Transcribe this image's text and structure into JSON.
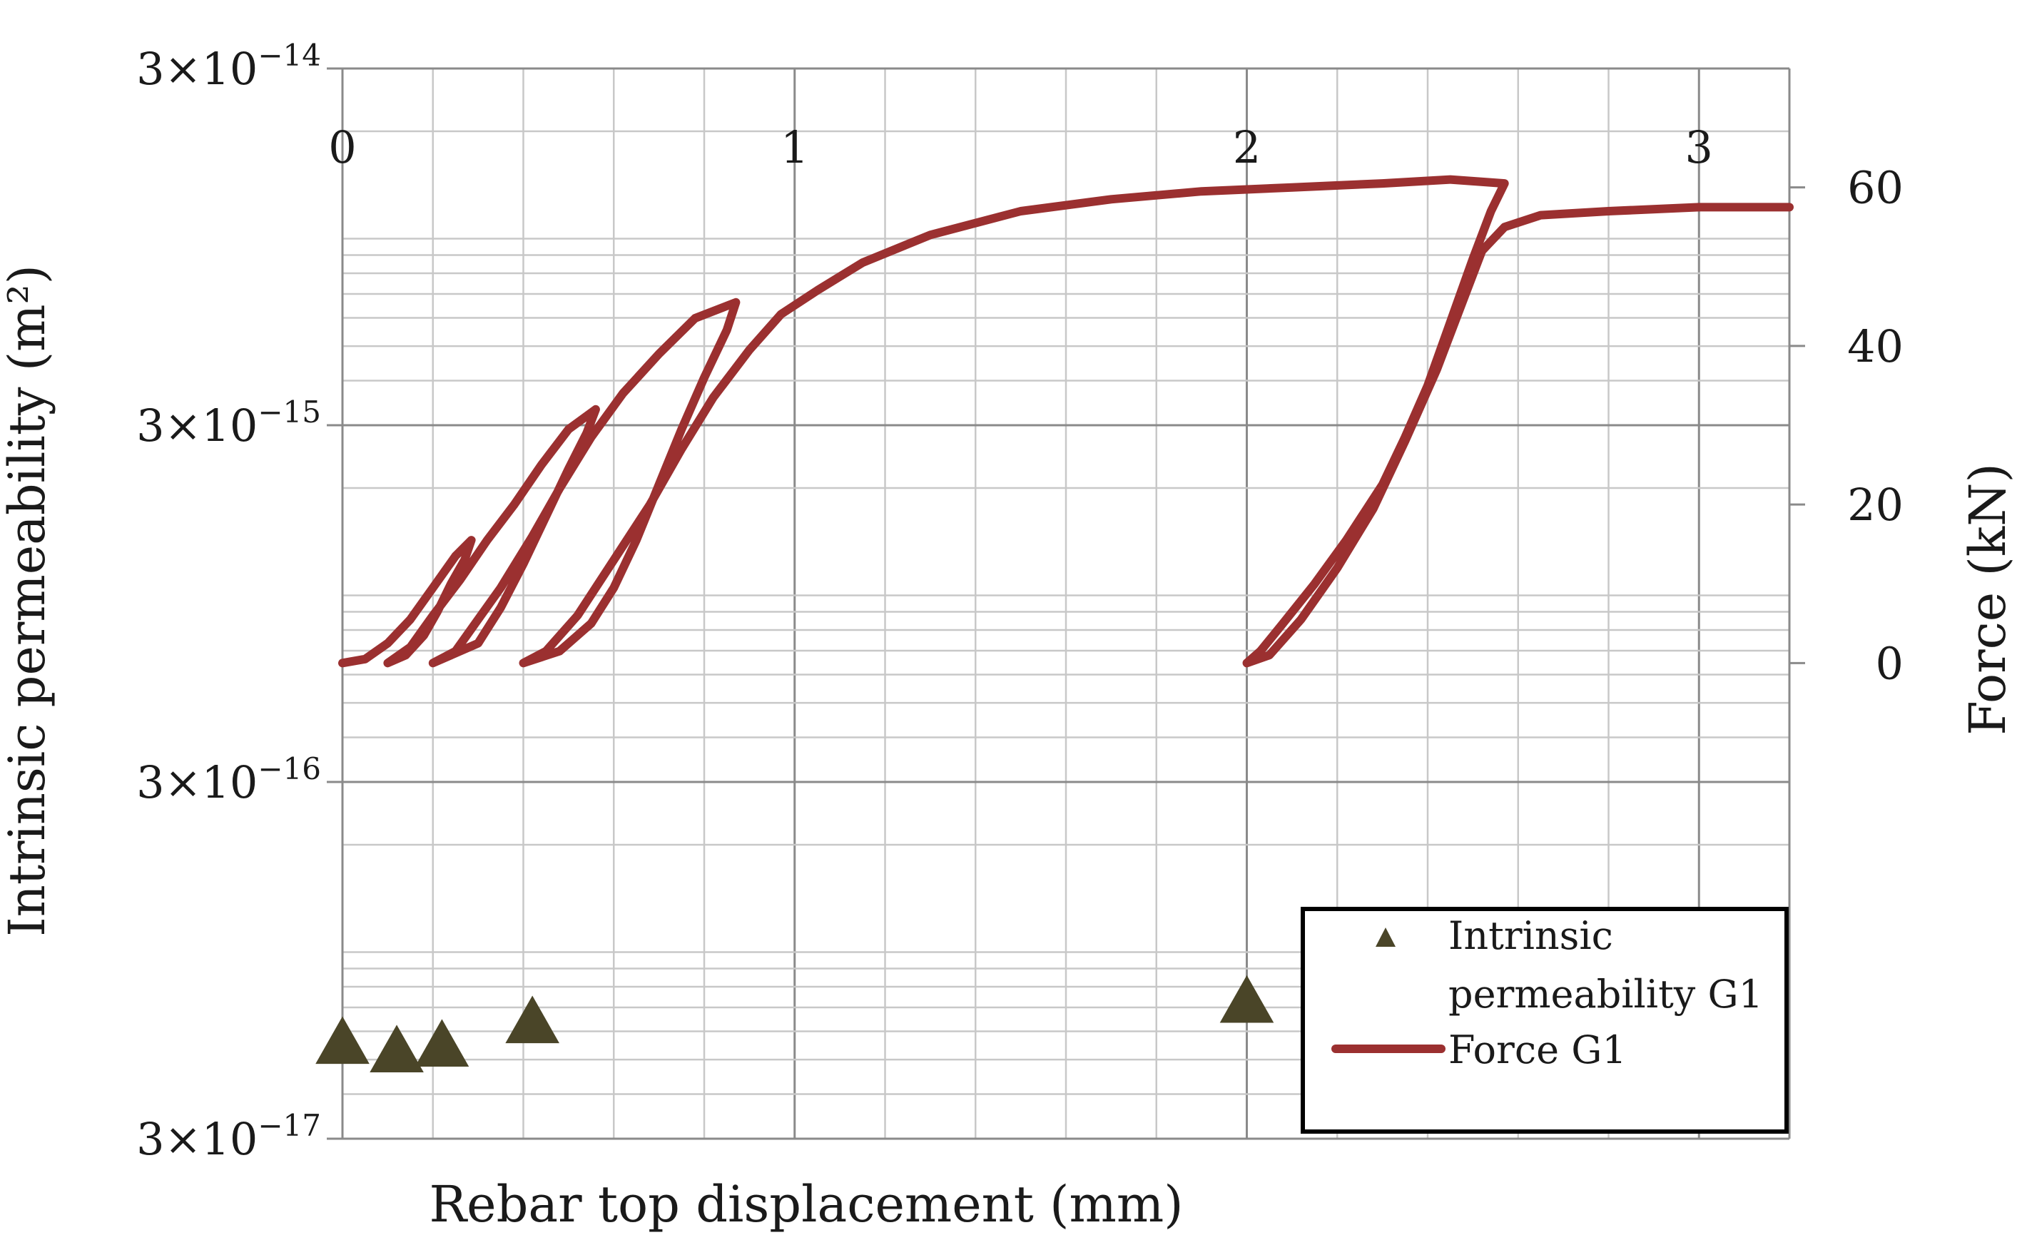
{
  "chart_data": {
    "type": "scatter",
    "title": "",
    "xlabel": "Rebar top displacement (mm)",
    "ylabel_left": "Intrinsic permeability (m²)",
    "ylabel_right": "Force (kN)",
    "x_axis": {
      "range": [
        0,
        3.2
      ],
      "position": "top",
      "ticks": [
        {
          "value": 0,
          "label": "0"
        },
        {
          "value": 1,
          "label": "1"
        },
        {
          "value": 2,
          "label": "2"
        },
        {
          "value": 3,
          "label": "3"
        }
      ],
      "minor_step": 0.2
    },
    "y_left_axis": {
      "scale": "log",
      "range": [
        3e-17,
        3e-14
      ],
      "ticks": [
        {
          "value": 3e-14,
          "mantissa": "3",
          "times": "×10",
          "exponent": "−14"
        },
        {
          "value": 3e-15,
          "mantissa": "3",
          "times": "×10",
          "exponent": "−15"
        },
        {
          "value": 3e-16,
          "mantissa": "3",
          "times": "×10",
          "exponent": "−16"
        },
        {
          "value": 3e-17,
          "mantissa": "3",
          "times": "×10",
          "exponent": "−17"
        }
      ]
    },
    "y_right_axis": {
      "scale": "linear",
      "range": [
        -60,
        75
      ],
      "ticks": [
        {
          "value": 0,
          "label": "0"
        },
        {
          "value": 20,
          "label": "20"
        },
        {
          "value": 40,
          "label": "40"
        },
        {
          "value": 60,
          "label": "60"
        }
      ]
    },
    "grid": true,
    "legend_position": "bottom-right",
    "series": [
      {
        "name": "Intrinsic permeability G1",
        "legend_lines": [
          "Intrinsic",
          "permeability G1"
        ],
        "kind": "scatter",
        "marker": "triangle",
        "axis": "left",
        "color": "#4a4528",
        "points": [
          {
            "x": 0.0,
            "y": 5.6e-17
          },
          {
            "x": 0.12,
            "y": 5.3e-17
          },
          {
            "x": 0.22,
            "y": 5.5e-17
          },
          {
            "x": 0.42,
            "y": 6.4e-17
          },
          {
            "x": 2.0,
            "y": 7.3e-17
          }
        ]
      },
      {
        "name": "Force G1",
        "kind": "line",
        "axis": "right",
        "color": "#9b3030",
        "points": [
          [
            0.0,
            0
          ],
          [
            0.05,
            0.5
          ],
          [
            0.1,
            2.5
          ],
          [
            0.15,
            5.5
          ],
          [
            0.2,
            9.5
          ],
          [
            0.25,
            13.5
          ],
          [
            0.285,
            15.5
          ],
          [
            0.27,
            13
          ],
          [
            0.24,
            10
          ],
          [
            0.21,
            6.5
          ],
          [
            0.18,
            3.5
          ],
          [
            0.14,
            1
          ],
          [
            0.1,
            0
          ],
          [
            0.15,
            2
          ],
          [
            0.2,
            6
          ],
          [
            0.26,
            10.5
          ],
          [
            0.32,
            15.5
          ],
          [
            0.38,
            20
          ],
          [
            0.44,
            25
          ],
          [
            0.5,
            29.5
          ],
          [
            0.56,
            32
          ],
          [
            0.54,
            29
          ],
          [
            0.5,
            24.5
          ],
          [
            0.45,
            18.5
          ],
          [
            0.4,
            12.5
          ],
          [
            0.35,
            7
          ],
          [
            0.3,
            2.5
          ],
          [
            0.2,
            0
          ],
          [
            0.25,
            1.5
          ],
          [
            0.3,
            5.5
          ],
          [
            0.35,
            9.5
          ],
          [
            0.42,
            16
          ],
          [
            0.48,
            22
          ],
          [
            0.55,
            28.5
          ],
          [
            0.62,
            34
          ],
          [
            0.7,
            39
          ],
          [
            0.78,
            43.5
          ],
          [
            0.87,
            45.5
          ],
          [
            0.85,
            42
          ],
          [
            0.8,
            36
          ],
          [
            0.75,
            29.5
          ],
          [
            0.7,
            22.5
          ],
          [
            0.65,
            15.5
          ],
          [
            0.6,
            9.5
          ],
          [
            0.55,
            5
          ],
          [
            0.48,
            1.5
          ],
          [
            0.4,
            0
          ],
          [
            0.45,
            1.5
          ],
          [
            0.52,
            6
          ],
          [
            0.6,
            13
          ],
          [
            0.68,
            20
          ],
          [
            0.75,
            27
          ],
          [
            0.82,
            33.5
          ],
          [
            0.9,
            39.5
          ],
          [
            0.97,
            44
          ],
          [
            1.05,
            47
          ],
          [
            1.15,
            50.5
          ],
          [
            1.3,
            54
          ],
          [
            1.5,
            57
          ],
          [
            1.7,
            58.5
          ],
          [
            1.9,
            59.5
          ],
          [
            2.1,
            60
          ],
          [
            2.3,
            60.5
          ],
          [
            2.45,
            61
          ],
          [
            2.57,
            60.5
          ],
          [
            2.54,
            57
          ],
          [
            2.5,
            51
          ],
          [
            2.45,
            43
          ],
          [
            2.4,
            35
          ],
          [
            2.35,
            28.5
          ],
          [
            2.3,
            22.5
          ],
          [
            2.22,
            15.5
          ],
          [
            2.15,
            10
          ],
          [
            2.08,
            5
          ],
          [
            2.03,
            1.5
          ],
          [
            2.0,
            0
          ],
          [
            2.05,
            1
          ],
          [
            2.12,
            5.5
          ],
          [
            2.2,
            12
          ],
          [
            2.28,
            19.5
          ],
          [
            2.35,
            28
          ],
          [
            2.42,
            37
          ],
          [
            2.48,
            46
          ],
          [
            2.52,
            52
          ],
          [
            2.57,
            55
          ],
          [
            2.65,
            56.5
          ],
          [
            2.8,
            57
          ],
          [
            3.0,
            57.5
          ],
          [
            3.1,
            57.5
          ],
          [
            3.2,
            57.5
          ]
        ]
      }
    ]
  }
}
